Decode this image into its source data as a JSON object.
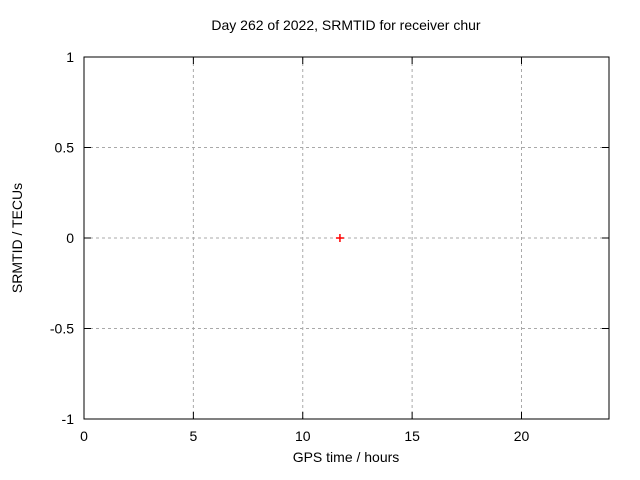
{
  "figure": {
    "background": "#ffffff"
  },
  "chart_data": {
    "type": "scatter",
    "title": "Day 262 of 2022, SRMTID for receiver chur",
    "xlabel": "GPS time / hours",
    "ylabel": "SRMTID / TECUs",
    "xlim": [
      0,
      24
    ],
    "ylim": [
      -1,
      1
    ],
    "xticks": [
      0,
      5,
      10,
      15,
      20
    ],
    "yticks": [
      -1,
      -0.5,
      0,
      0.5,
      1
    ],
    "ytick_labels": [
      "-1",
      "-0.5",
      "0",
      "0.5",
      "1"
    ],
    "grid": "dotted",
    "legend": "none",
    "series": [
      {
        "marker": "plus",
        "color": "#ff0000",
        "points": [
          {
            "x": 11.7,
            "y": 0.0
          }
        ]
      }
    ]
  },
  "style": {
    "axis_color": "#000000",
    "grid_color": "#a9a9a9",
    "text_color": "#000000"
  }
}
